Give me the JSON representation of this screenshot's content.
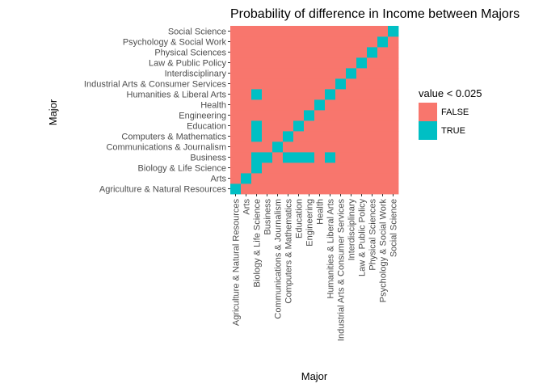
{
  "chart_data": {
    "type": "heatmap",
    "title": "Probability of difference in Income between Majors",
    "xlabel": "Major",
    "ylabel": "Major",
    "categories": [
      "Agriculture & Natural Resources",
      "Arts",
      "Biology & Life Science",
      "Business",
      "Communications & Journalism",
      "Computers & Mathematics",
      "Education",
      "Engineering",
      "Health",
      "Humanities & Liberal Arts",
      "Industrial Arts & Consumer Services",
      "Interdisciplinary",
      "Law & Public Policy",
      "Physical Sciences",
      "Psychology & Social Work",
      "Social Science"
    ],
    "legend": {
      "title": "value < 0.025",
      "placement": "right",
      "entries": [
        {
          "label": "FALSE",
          "color": "#F8766D"
        },
        {
          "label": "TRUE",
          "color": "#00BFC4"
        }
      ]
    },
    "true_cells": [
      [
        "Agriculture & Natural Resources",
        "Agriculture & Natural Resources"
      ],
      [
        "Arts",
        "Arts"
      ],
      [
        "Biology & Life Science",
        "Biology & Life Science"
      ],
      [
        "Business",
        "Business"
      ],
      [
        "Communications & Journalism",
        "Communications & Journalism"
      ],
      [
        "Computers & Mathematics",
        "Computers & Mathematics"
      ],
      [
        "Education",
        "Education"
      ],
      [
        "Engineering",
        "Engineering"
      ],
      [
        "Health",
        "Health"
      ],
      [
        "Humanities & Liberal Arts",
        "Humanities & Liberal Arts"
      ],
      [
        "Industrial Arts & Consumer Services",
        "Industrial Arts & Consumer Services"
      ],
      [
        "Interdisciplinary",
        "Interdisciplinary"
      ],
      [
        "Law & Public Policy",
        "Law & Public Policy"
      ],
      [
        "Physical Sciences",
        "Physical Sciences"
      ],
      [
        "Psychology & Social Work",
        "Psychology & Social Work"
      ],
      [
        "Social Science",
        "Social Science"
      ],
      [
        "Biology & Life Science",
        "Business"
      ],
      [
        "Computers & Mathematics",
        "Business"
      ],
      [
        "Education",
        "Business"
      ],
      [
        "Engineering",
        "Business"
      ],
      [
        "Humanities & Liberal Arts",
        "Business"
      ],
      [
        "Biology & Life Science",
        "Computers & Mathematics"
      ],
      [
        "Biology & Life Science",
        "Education"
      ],
      [
        "Biology & Life Science",
        "Humanities & Liberal Arts"
      ]
    ],
    "grid": false
  }
}
